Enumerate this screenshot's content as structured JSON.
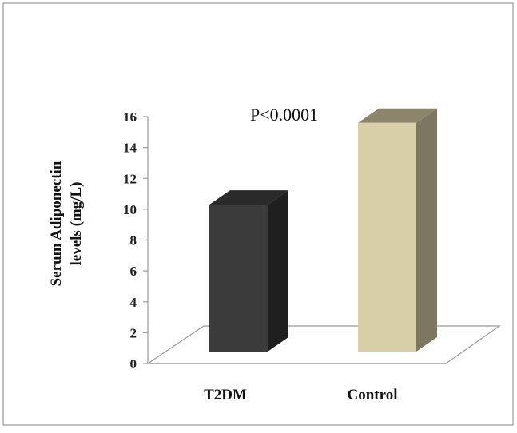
{
  "chart_data": {
    "type": "bar",
    "categories": [
      "T2DM",
      "Control"
    ],
    "values": [
      10.3,
      15.6
    ],
    "ylabel_lines": [
      "Serum Adiponectin",
      "levels  (mg/L)"
    ],
    "xlabel": "",
    "title": "",
    "annotation": "P<0.0001",
    "ylim": [
      0,
      16
    ],
    "yticks": [
      0,
      2,
      4,
      6,
      8,
      10,
      12,
      14,
      16
    ],
    "colors": {
      "T2DM": {
        "front": "#3b3b3b",
        "side": "#1f1f1f",
        "top": "#2a2a2a"
      },
      "Control": {
        "front": "#d8cfa8",
        "side": "#7d7660",
        "top": "#8c856b"
      }
    },
    "grid": false,
    "legend": "none"
  }
}
